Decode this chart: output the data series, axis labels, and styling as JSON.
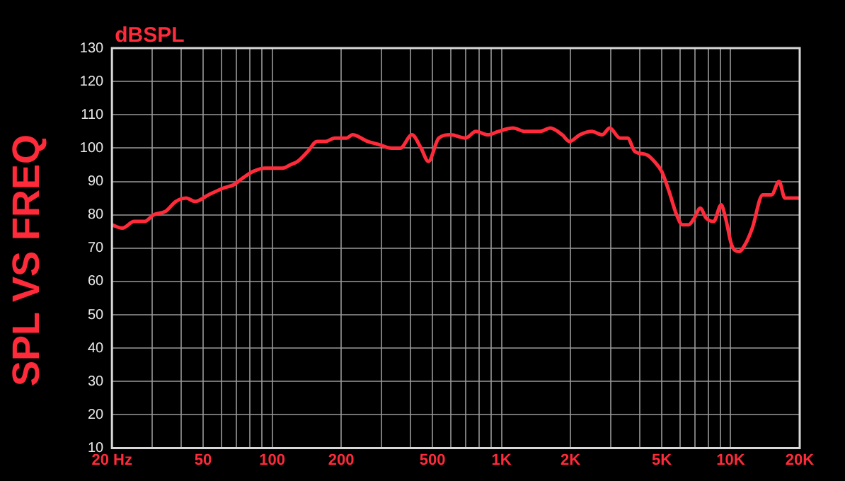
{
  "chart_data": {
    "type": "line",
    "title": "SPL VS FREQ",
    "ylabel": "dBSPL",
    "log": "x",
    "grid": true,
    "legend": false,
    "marker": "none",
    "line_style": "solid",
    "xlim": [
      20,
      20000
    ],
    "ylim": [
      10,
      130
    ],
    "xticks": [
      {
        "value": 20,
        "label": "20 Hz"
      },
      {
        "value": 30,
        "label": null
      },
      {
        "value": 40,
        "label": null
      },
      50,
      {
        "value": 60,
        "label": null
      },
      {
        "value": 70,
        "label": null
      },
      {
        "value": 80,
        "label": null
      },
      {
        "value": 90,
        "label": null
      },
      100,
      200,
      {
        "value": 300,
        "label": null
      },
      {
        "value": 400,
        "label": null
      },
      500,
      {
        "value": 600,
        "label": null
      },
      {
        "value": 700,
        "label": null
      },
      {
        "value": 800,
        "label": null
      },
      {
        "value": 900,
        "label": null
      },
      {
        "value": 1000,
        "label": "1K"
      },
      {
        "value": 2000,
        "label": "2K"
      },
      {
        "value": 3000,
        "label": null
      },
      {
        "value": 4000,
        "label": null
      },
      {
        "value": 5000,
        "label": "5K"
      },
      {
        "value": 6000,
        "label": null
      },
      {
        "value": 7000,
        "label": null
      },
      {
        "value": 8000,
        "label": null
      },
      {
        "value": 9000,
        "label": null
      },
      {
        "value": 10000,
        "label": "10K"
      },
      {
        "value": 20000,
        "label": "20K"
      }
    ],
    "yticks": [
      10,
      20,
      30,
      40,
      50,
      60,
      70,
      80,
      90,
      100,
      110,
      120,
      130
    ],
    "series": [
      {
        "color": "#ff2a3a",
        "x": [
          20,
          22.2,
          25,
          27.8,
          30.4,
          34.2,
          38,
          42.2,
          46.1,
          52.8,
          61.2,
          67.9,
          74.3,
          82.6,
          93,
          103,
          111,
          120,
          129,
          143,
          157,
          171,
          187,
          211,
          224,
          261,
          294,
          331,
          362,
          407,
          446,
          480,
          533,
          601,
          697,
          774,
          873,
          969,
          1125,
          1268,
          1470,
          1634,
          1841,
          1982,
          2199,
          2479,
          2754,
          2966,
          3290,
          3548,
          3820,
          4306,
          4645,
          5000,
          5385,
          5808,
          6164,
          6546,
          6935,
          7365,
          7820,
          8433,
          9080,
          9500,
          10090,
          10870,
          11540,
          12420,
          13800,
          15080,
          16250,
          17250,
          18310,
          20000
        ],
        "values": [
          77,
          76,
          78,
          78,
          80,
          81,
          84,
          85,
          84,
          86,
          88,
          89,
          91,
          93,
          94,
          94,
          94,
          95,
          96,
          99,
          102,
          102,
          103,
          103,
          104,
          102,
          101,
          100,
          100,
          104,
          100,
          96,
          103,
          104,
          103,
          105,
          104,
          105,
          106,
          105,
          105,
          106,
          104,
          102,
          104,
          105,
          104,
          106,
          103,
          103,
          99,
          98,
          96,
          93,
          87,
          80,
          77,
          77,
          79,
          82,
          79,
          78,
          83,
          79,
          71,
          69,
          71,
          76,
          86,
          86,
          90,
          85,
          85,
          85
        ]
      }
    ]
  }
}
